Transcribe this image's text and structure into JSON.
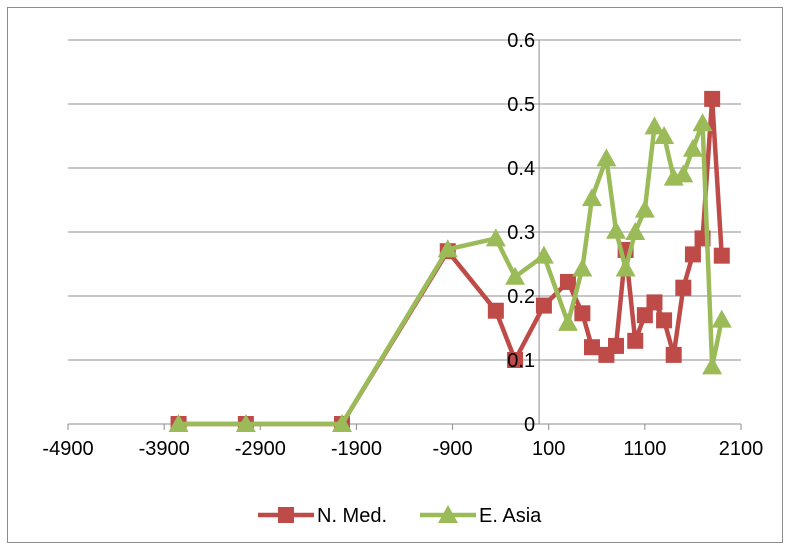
{
  "chart_data": {
    "type": "line",
    "title": "",
    "xlabel": "",
    "ylabel": "",
    "xlim": [
      -4900,
      2100
    ],
    "ylim": [
      0,
      0.6
    ],
    "x_ticks": [
      "-4900",
      "-3900",
      "-2900",
      "-1900",
      "-900",
      "100",
      "1100",
      "2100"
    ],
    "y_ticks": [
      "0",
      "0.1",
      "0.2",
      "0.3",
      "0.4",
      "0.5",
      "0.6"
    ],
    "grid": "horizontal",
    "legend_position": "bottom",
    "series": [
      {
        "name": "N. Med.",
        "color": "#be4b48",
        "marker": "square",
        "x": [
          -3750,
          -3050,
          -2050,
          -950,
          -450,
          -250,
          50,
          300,
          450,
          550,
          700,
          800,
          900,
          1000,
          1100,
          1200,
          1300,
          1400,
          1500,
          1600,
          1700,
          1800,
          1900
        ],
        "y": [
          0,
          0,
          0,
          0.27,
          0.177,
          0.1,
          0.185,
          0.222,
          0.173,
          0.12,
          0.108,
          0.122,
          0.272,
          0.13,
          0.17,
          0.19,
          0.162,
          0.108,
          0.213,
          0.265,
          0.29,
          0.508,
          0.263
        ]
      },
      {
        "name": "E. Asia",
        "color": "#9bbb59",
        "marker": "triangle",
        "x": [
          -3750,
          -3050,
          -2050,
          -950,
          -450,
          -250,
          50,
          300,
          450,
          550,
          700,
          800,
          900,
          1000,
          1100,
          1200,
          1300,
          1400,
          1500,
          1600,
          1700,
          1800,
          1900
        ],
        "y": [
          0,
          0,
          0,
          0.273,
          0.29,
          0.23,
          0.263,
          0.158,
          0.243,
          0.353,
          0.415,
          0.302,
          0.243,
          0.3,
          0.335,
          0.465,
          0.45,
          0.385,
          0.39,
          0.43,
          0.47,
          0.09,
          0.163
        ]
      }
    ]
  }
}
